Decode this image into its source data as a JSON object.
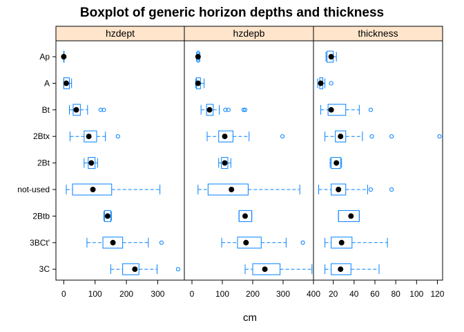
{
  "chart_data": {
    "type": "boxplot",
    "title": "Boxplot of generic horizon depths and thickness",
    "xlabel": "cm",
    "ylabel": "",
    "categories": [
      "Ap",
      "A",
      "Bt",
      "2Btx",
      "2Bt",
      "not-used",
      "2Btb",
      "3BCt'",
      "3C"
    ],
    "colors": {
      "box": "#0080ff",
      "strip": "#ffe5cc",
      "median": "#000000",
      "frame": "#000000"
    },
    "panels": [
      {
        "name": "hzdept",
        "xlim": [
          -25,
          385
        ],
        "ticks": [
          0,
          100,
          200,
          300
        ],
        "tick_labels": [
          "0",
          "100",
          "200",
          "300"
        ],
        "stats": {
          "Ap": {
            "min": 0,
            "q1": 0,
            "median": 0,
            "q3": 0,
            "max": 0,
            "outliers": []
          },
          "A": {
            "min": 0,
            "q1": 0,
            "median": 8,
            "q3": 18,
            "max": 25,
            "outliers": []
          },
          "Bt": {
            "min": 18,
            "q1": 30,
            "median": 40,
            "q3": 53,
            "max": 76,
            "outliers": [
              118,
              128
            ]
          },
          "2Btx": {
            "min": 20,
            "q1": 65,
            "median": 80,
            "q3": 105,
            "max": 133,
            "outliers": [
              173
            ]
          },
          "2Bt": {
            "min": 65,
            "q1": 78,
            "median": 88,
            "q3": 100,
            "max": 108,
            "outliers": []
          },
          "not-used": {
            "min": 8,
            "q1": 28,
            "median": 93,
            "q3": 153,
            "max": 307,
            "outliers": []
          },
          "2Btb": {
            "min": 128,
            "q1": 130,
            "median": 140,
            "q3": 150,
            "max": 152,
            "outliers": []
          },
          "3BCt'": {
            "min": 74,
            "q1": 125,
            "median": 157,
            "q3": 188,
            "max": 270,
            "outliers": [
              312
            ]
          },
          "3C": {
            "min": 150,
            "q1": 188,
            "median": 227,
            "q3": 240,
            "max": 298,
            "outliers": [
              365
            ]
          }
        }
      },
      {
        "name": "hzdepb",
        "xlim": [
          -25,
          400
        ],
        "ticks": [
          0,
          100,
          200,
          300,
          400
        ],
        "tick_labels": [
          "0",
          "100",
          "200",
          "300",
          "400"
        ],
        "stats": {
          "Ap": {
            "min": 15,
            "q1": 18,
            "median": 20,
            "q3": 23,
            "max": 26,
            "outliers": []
          },
          "A": {
            "min": 12,
            "q1": 15,
            "median": 20,
            "q3": 28,
            "max": 40,
            "outliers": []
          },
          "Bt": {
            "min": 30,
            "q1": 48,
            "median": 58,
            "q3": 70,
            "max": 90,
            "outliers": [
              110,
              120,
              170,
              175
            ]
          },
          "2Btx": {
            "min": 50,
            "q1": 88,
            "median": 108,
            "q3": 135,
            "max": 188,
            "outliers": [
              298
            ]
          },
          "2Bt": {
            "min": 88,
            "q1": 97,
            "median": 108,
            "q3": 118,
            "max": 128,
            "outliers": []
          },
          "not-used": {
            "min": 20,
            "q1": 53,
            "median": 130,
            "q3": 185,
            "max": 355,
            "outliers": []
          },
          "2Btb": {
            "min": 155,
            "q1": 155,
            "median": 175,
            "q3": 197,
            "max": 197,
            "outliers": []
          },
          "3BCt'": {
            "min": 98,
            "q1": 150,
            "median": 178,
            "q3": 228,
            "max": 310,
            "outliers": [
              365
            ]
          },
          "3C": {
            "min": 175,
            "q1": 200,
            "median": 240,
            "q3": 290,
            "max": 395,
            "outliers": []
          }
        }
      },
      {
        "name": "thickness",
        "xlim": [
          1,
          125
        ],
        "ticks": [
          20,
          40,
          60,
          80,
          100,
          120
        ],
        "tick_labels": [
          "20",
          "40",
          "60",
          "80",
          "100",
          "120"
        ],
        "stats": {
          "Ap": {
            "min": 13,
            "q1": 14,
            "median": 18,
            "q3": 20,
            "max": 23,
            "outliers": []
          },
          "A": {
            "min": 5,
            "q1": 7,
            "median": 8,
            "q3": 10,
            "max": 12,
            "outliers": [
              18
            ]
          },
          "Bt": {
            "min": 8,
            "q1": 15,
            "median": 18,
            "q3": 32,
            "max": 45,
            "outliers": [
              56
            ]
          },
          "2Btx": {
            "min": 12,
            "q1": 22,
            "median": 27,
            "q3": 32,
            "max": 48,
            "outliers": [
              57,
              76,
              122
            ]
          },
          "2Bt": {
            "min": 17,
            "q1": 18,
            "median": 23,
            "q3": 27,
            "max": 28,
            "outliers": []
          },
          "not-used": {
            "min": 6,
            "q1": 18,
            "median": 25,
            "q3": 32,
            "max": 53,
            "outliers": [
              56,
              76
            ]
          },
          "2Btb": {
            "min": 25,
            "q1": 25,
            "median": 37,
            "q3": 45,
            "max": 45,
            "outliers": []
          },
          "3BCt'": {
            "min": 12,
            "q1": 18,
            "median": 28,
            "q3": 38,
            "max": 72,
            "outliers": []
          },
          "3C": {
            "min": 12,
            "q1": 18,
            "median": 27,
            "q3": 37,
            "max": 64,
            "outliers": []
          }
        }
      }
    ]
  }
}
